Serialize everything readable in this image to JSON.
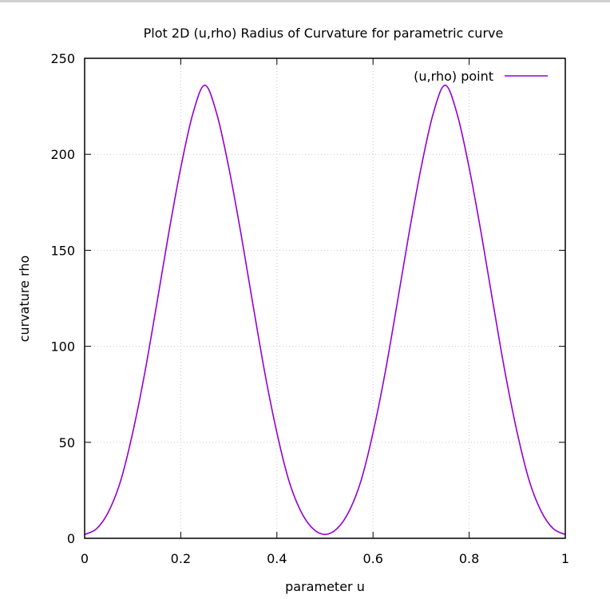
{
  "chart_data": {
    "type": "line",
    "title": "Plot 2D (u,rho) Radius of Curvature for parametric curve",
    "xlabel": "parameter u",
    "ylabel": "curvature rho",
    "xlim": [
      0,
      1
    ],
    "ylim": [
      0,
      250
    ],
    "xticks": [
      0,
      0.2,
      0.4,
      0.6,
      0.8,
      1
    ],
    "xtick_labels": [
      "0",
      "0.2",
      "0.4",
      "0.6",
      "0.8",
      "1"
    ],
    "yticks": [
      0,
      50,
      100,
      150,
      200,
      250
    ],
    "ytick_labels": [
      "0",
      "50",
      "100",
      "150",
      "200",
      "250"
    ],
    "grid": true,
    "legend_position": "top-right",
    "series": [
      {
        "name": "(u,rho) point",
        "color": "#9400d3",
        "x": [
          0,
          0.025,
          0.05,
          0.075,
          0.1,
          0.125,
          0.15,
          0.175,
          0.2,
          0.225,
          0.25,
          0.275,
          0.3,
          0.325,
          0.35,
          0.375,
          0.4,
          0.425,
          0.45,
          0.475,
          0.5,
          0.525,
          0.55,
          0.575,
          0.6,
          0.625,
          0.65,
          0.675,
          0.7,
          0.725,
          0.75,
          0.775,
          0.8,
          0.825,
          0.85,
          0.875,
          0.9,
          0.925,
          0.95,
          0.975,
          1
        ],
        "y": [
          2,
          5,
          14,
          30,
          55,
          86,
          122,
          159,
          193,
          221,
          236,
          221,
          193,
          159,
          122,
          86,
          55,
          30,
          14,
          5,
          2,
          5,
          14,
          30,
          55,
          86,
          122,
          159,
          193,
          221,
          236,
          221,
          193,
          159,
          122,
          86,
          55,
          30,
          14,
          5,
          2
        ]
      }
    ]
  }
}
